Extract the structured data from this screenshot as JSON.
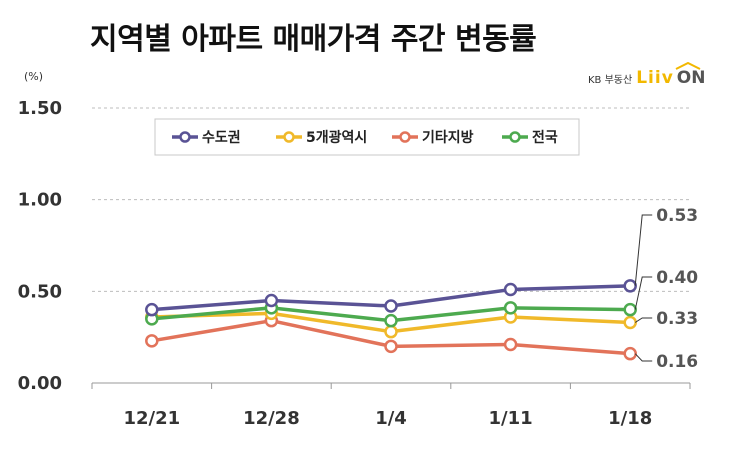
{
  "title": "지역별 아파트 매매가격 주간 변동률",
  "logo": {
    "prefix": "KB 부동산",
    "brand": "Liiv",
    "suffix": "ON",
    "colors": {
      "brand": "#f2b800",
      "suffix": "#555555"
    }
  },
  "chart_data": {
    "type": "line",
    "unit_label": "(%)",
    "categories": [
      "12/21",
      "12/28",
      "1/4",
      "1/11",
      "1/18"
    ],
    "ylim": [
      0,
      1.5
    ],
    "yticks": [
      "0.00",
      "0.50",
      "1.00",
      "1.50"
    ],
    "ytick_values": [
      0,
      0.5,
      1.0,
      1.5
    ],
    "grid": "horizontal-dashed",
    "legend_position": "top",
    "series": [
      {
        "name": "수도권",
        "color": "#5a5395",
        "values": [
          0.4,
          0.45,
          0.42,
          0.51,
          0.53
        ]
      },
      {
        "name": "5개광역시",
        "color": "#f0b92a",
        "values": [
          0.36,
          0.38,
          0.28,
          0.36,
          0.33
        ]
      },
      {
        "name": "기타지방",
        "color": "#e2735a",
        "values": [
          0.23,
          0.34,
          0.2,
          0.21,
          0.16
        ]
      },
      {
        "name": "전국",
        "color": "#4daa4f",
        "values": [
          0.35,
          0.41,
          0.34,
          0.41,
          0.4
        ]
      }
    ],
    "annotations": [
      {
        "series": 0,
        "label": "0.53"
      },
      {
        "series": 3,
        "label": "0.40"
      },
      {
        "series": 1,
        "label": "0.33"
      },
      {
        "series": 2,
        "label": "0.16"
      }
    ]
  }
}
